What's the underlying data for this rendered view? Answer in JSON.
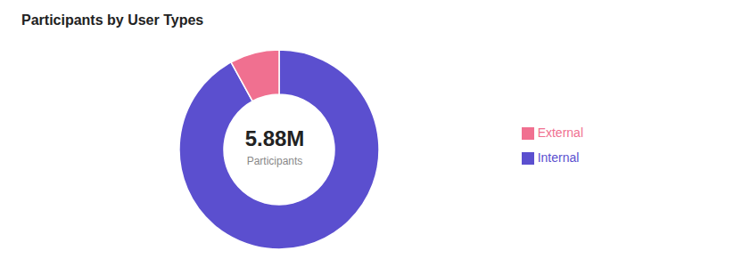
{
  "chart_data": {
    "type": "pie",
    "title": "Participants by User Types",
    "annotations": [
      "5.88M",
      "Participants"
    ],
    "categories": [
      "Internal",
      "External"
    ],
    "values": [
      92,
      8
    ],
    "colors": [
      "#5B4FCF",
      "#F07090"
    ],
    "legend": "right"
  }
}
